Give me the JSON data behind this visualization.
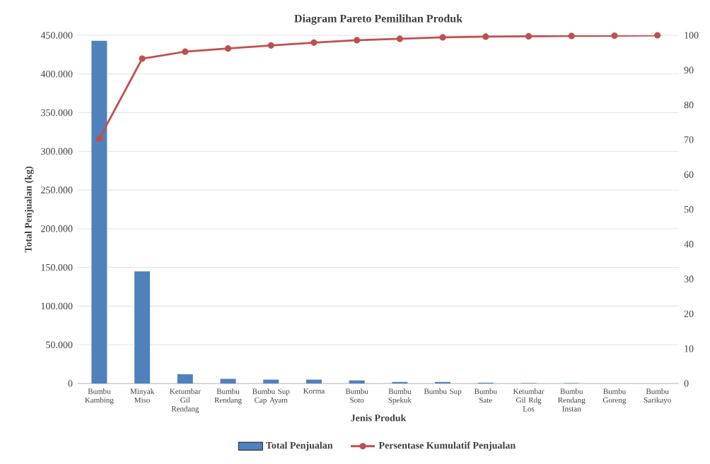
{
  "chart_data": {
    "type": "bar",
    "title": "Diagram Pareto Pemilihan Produk",
    "xlabel": "Jenis Produk",
    "ylabel": "Total Penjualan (kg)",
    "categories": [
      "Bumbu Kambing",
      "Minyak Miso",
      "Ketumbar Gil Rendang",
      "Bumbu Rendang",
      "Bumbu Sup Cap Ayam",
      "Korma",
      "Bumbu Soto",
      "Bumbu Spekuk",
      "Bumbu Sup",
      "Bumbu Sate",
      "Ketumbar Gil Rdg Los",
      "Bumbu Rendang Instan",
      "Bumbu Goreng",
      "Bumbu Sarikayo"
    ],
    "series": [
      {
        "name": "Total Penjualan",
        "color": "#4f81bd",
        "values": [
          443000,
          145000,
          12000,
          6000,
          5000,
          5000,
          4000,
          2000,
          2000,
          1000,
          500,
          500,
          null,
          null
        ]
      },
      {
        "name": "Persentase Kumulatif Penjualan",
        "type": "line",
        "axis": "y2",
        "color": "#c0504d",
        "marker": "circle",
        "values": [
          70.3,
          93.3,
          95.3,
          96.2,
          97.1,
          97.9,
          98.6,
          99.0,
          99.4,
          99.6,
          99.7,
          99.8,
          99.9,
          100
        ]
      }
    ],
    "ylim": [
      0,
      450000
    ],
    "yticks": [
      {
        "value": 0,
        "label": "0"
      },
      {
        "value": 50000,
        "label": "50.000"
      },
      {
        "value": 100000,
        "label": "100.000"
      },
      {
        "value": 150000,
        "label": "150.000"
      },
      {
        "value": 200000,
        "label": "200.000"
      },
      {
        "value": 250000,
        "label": "250.000"
      },
      {
        "value": 300000,
        "label": "300.000"
      },
      {
        "value": 350000,
        "label": "350.000"
      },
      {
        "value": 400000,
        "label": "400.000"
      },
      {
        "value": 450000,
        "label": "450.000"
      }
    ],
    "y2lim": [
      0,
      100
    ],
    "y2ticks": [
      0,
      10,
      20,
      30,
      40,
      50,
      60,
      70,
      80,
      90,
      100
    ],
    "grid": "y",
    "legend": "bottom"
  }
}
